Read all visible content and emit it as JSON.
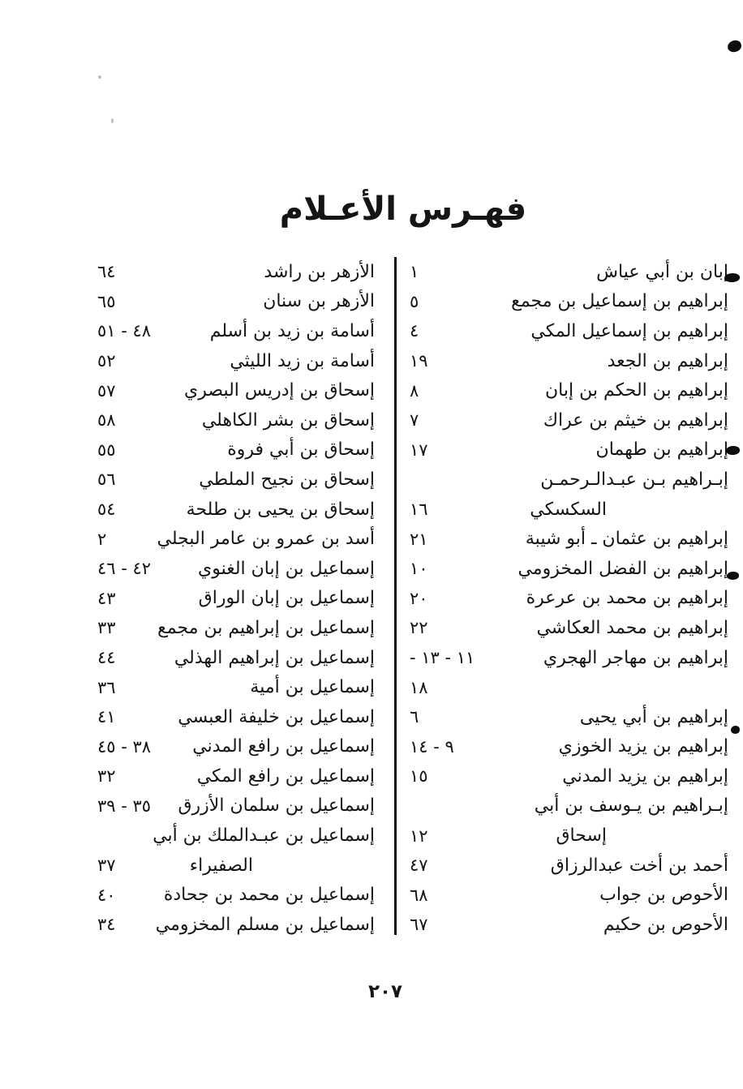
{
  "document": {
    "title": "فهـرس الأعـلام",
    "page_number": "٢٠٧"
  },
  "colors": {
    "ink": "#151515",
    "paper": "#ffffff"
  },
  "columns": {
    "right": {
      "entries": [
        {
          "text": "إبان بن أبي عياش",
          "num": "١"
        },
        {
          "text": "إبراهيم بن إسماعيل بن مجمع",
          "num": "٥"
        },
        {
          "text": "إبراهيم بن إسماعيل المكي",
          "num": "٤"
        },
        {
          "text": "إبراهيم بن الجعد",
          "num": "١٩"
        },
        {
          "text": "إبراهيم بن الحكم بن إبان",
          "num": "٨"
        },
        {
          "text": "إبراهيم بن خيثم بن عراك",
          "num": "٧"
        },
        {
          "text": "إبراهيم بن طهمان",
          "num": "١٧"
        },
        {
          "text": "إبـراهيم بـن عبـدالـرحمـن",
          "num": ""
        },
        {
          "text": "السكسكي",
          "num": "١٦",
          "cont": true
        },
        {
          "text": "إبراهيم بن عثمان ـ أبو شيبة",
          "num": "٢١"
        },
        {
          "text": "إبراهيم بن الفضل المخزومي",
          "num": "١٠"
        },
        {
          "text": "إبراهيم بن محمد بن عرعرة",
          "num": "٢٠"
        },
        {
          "text": "إبراهيم بن محمد العكاشي",
          "num": "٢٢"
        },
        {
          "text": "إبراهيم بن مهاجر الهجري",
          "num": "١١ - ١٣ -"
        },
        {
          "text": "",
          "num": "١٨"
        },
        {
          "text": "إبراهيم بن أبي يحيى",
          "num": "٦"
        },
        {
          "text": "إبراهيم بن يزيد الخوزي",
          "num": "٩ - ١٤"
        },
        {
          "text": "إبراهيم بن يزيد المدني",
          "num": "١٥"
        },
        {
          "text": "إبـراهيم بن يـوسف بن أبي",
          "num": ""
        },
        {
          "text": "إسحاق",
          "num": "١٢",
          "cont": true
        },
        {
          "text": "أحمد بن أخت عبدالرزاق",
          "num": "٤٧"
        },
        {
          "text": "الأحوص بن جواب",
          "num": "٦٨"
        },
        {
          "text": "الأحوص بن حكيم",
          "num": "٦٧"
        }
      ]
    },
    "left": {
      "entries": [
        {
          "text": "الأزهر بن راشد",
          "num": "٦٤"
        },
        {
          "text": "الأزهر بن سنان",
          "num": "٦٥"
        },
        {
          "text": "أسامة بن زيد بن أسلم",
          "num": "٤٨ - ٥١"
        },
        {
          "text": "أسامة بن زيد الليثي",
          "num": "٥٢"
        },
        {
          "text": "إسحاق بن إدريس البصري",
          "num": "٥٧"
        },
        {
          "text": "إسحاق بن بشر الكاهلي",
          "num": "٥٨"
        },
        {
          "text": "إسحاق بن أبي فروة",
          "num": "٥٥"
        },
        {
          "text": "إسحاق بن نجيح الملطي",
          "num": "٥٦"
        },
        {
          "text": "إسحاق بن يحيى بن طلحة",
          "num": "٥٤"
        },
        {
          "text": "أسد بن عمرو بن عامر البجلي",
          "num": "٢"
        },
        {
          "text": "إسماعيل بن إبان الغنوي",
          "num": "٤٢ - ٤٦"
        },
        {
          "text": "إسماعيل بن إبان الوراق",
          "num": "٤٣"
        },
        {
          "text": "إسماعيل بن إبراهيم بن مجمع",
          "num": "٣٣"
        },
        {
          "text": "إسماعيل بن إبراهيم الهذلي",
          "num": "٤٤"
        },
        {
          "text": "إسماعيل بن أمية",
          "num": "٣٦"
        },
        {
          "text": "إسماعيل بن خليفة العبسي",
          "num": "٤١"
        },
        {
          "text": "إسماعيل بن رافع المدني",
          "num": "٣٨ - ٤٥"
        },
        {
          "text": "إسماعيل بن رافع المكي",
          "num": "٣٢"
        },
        {
          "text": "إسماعيل بن سلمان الأزرق",
          "num": "٣٥ - ٣٩"
        },
        {
          "text": "إسماعيل بن عبـدالملك بن أبي",
          "num": ""
        },
        {
          "text": "الصفيراء",
          "num": "٣٧",
          "cont": true
        },
        {
          "text": "إسماعيل بن محمد بن جحادة",
          "num": "٤٠"
        },
        {
          "text": "إسماعيل بن مسلم المخزومي",
          "num": "٣٤"
        }
      ]
    }
  }
}
